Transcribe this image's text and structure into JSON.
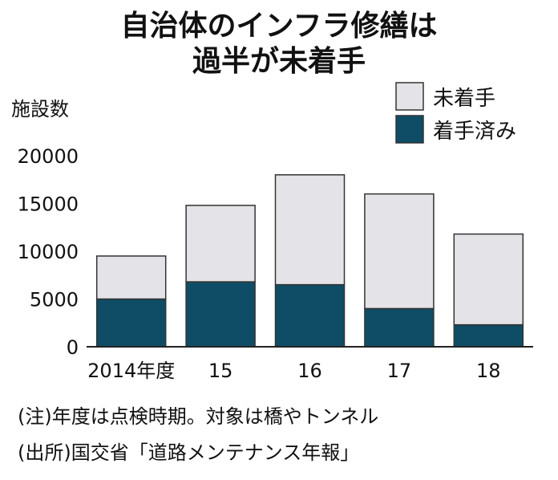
{
  "chart_data": {
    "type": "bar",
    "stacked": true,
    "title_lines": [
      "自治体のインフラ修繕は",
      "過半が未着手"
    ],
    "ylabel": "施設数",
    "xlabel": "",
    "categories": [
      "2014年度",
      "15",
      "16",
      "17",
      "18"
    ],
    "series": [
      {
        "name": "着手済み",
        "color": "#0f4d66",
        "values": [
          5000,
          6800,
          6500,
          4000,
          2300
        ]
      },
      {
        "name": "未着手",
        "color": "#e4e4e8",
        "values": [
          4500,
          8000,
          11500,
          12000,
          9500
        ]
      }
    ],
    "legend": {
      "placement": "top-right",
      "order": [
        "未着手",
        "着手済み"
      ]
    },
    "ylim": [
      0,
      20000
    ],
    "yticks": [
      "0",
      "5000",
      "10000",
      "15000",
      "20000"
    ],
    "grid": false,
    "notes": [
      "(注)年度は点検時期。対象は橋やトンネル",
      "(出所)国交省「道路メンテナンス年報」"
    ]
  }
}
